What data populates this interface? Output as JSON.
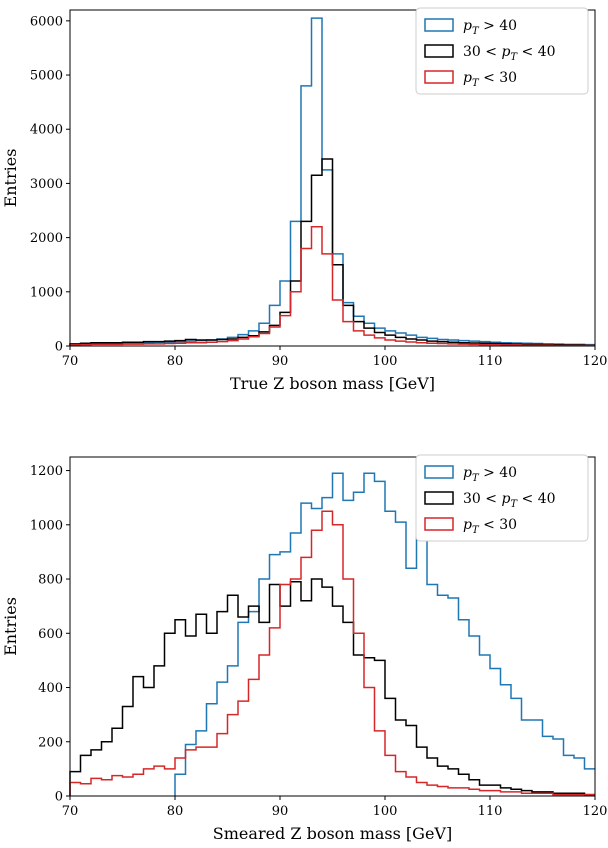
{
  "chart_data": [
    {
      "type": "histogram",
      "title": "",
      "xlabel": "True Z boson mass [GeV]",
      "ylabel": "Entries",
      "xlim": [
        70,
        120
      ],
      "ylim": [
        0,
        6200
      ],
      "xticks": [
        70,
        80,
        90,
        100,
        110,
        120
      ],
      "yticks": [
        0,
        1000,
        2000,
        3000,
        4000,
        5000,
        6000
      ],
      "bin_edges_start": 70,
      "bin_width": 1,
      "legend_position": "top-right",
      "series": [
        {
          "name": "p_T > 40",
          "legend_main": "p",
          "legend_sub": "T",
          "legend_rest": " > 40",
          "color": "#1f77b4",
          "values": [
            30,
            40,
            50,
            50,
            50,
            50,
            60,
            60,
            70,
            70,
            80,
            90,
            100,
            110,
            130,
            160,
            210,
            280,
            420,
            750,
            1200,
            2300,
            4800,
            6050,
            3250,
            1700,
            800,
            550,
            420,
            330,
            280,
            240,
            200,
            160,
            140,
            120,
            110,
            100,
            90,
            80,
            70,
            60,
            55,
            50,
            45,
            40,
            35,
            30,
            30,
            25
          ]
        },
        {
          "name": "30 < p_T < 40",
          "legend_main": "30 < p",
          "legend_sub": "T",
          "legend_rest": " < 40",
          "color": "#000000",
          "values": [
            40,
            50,
            60,
            60,
            60,
            70,
            70,
            80,
            80,
            90,
            100,
            120,
            110,
            110,
            120,
            130,
            160,
            190,
            260,
            380,
            620,
            1200,
            2300,
            3150,
            3450,
            1500,
            750,
            450,
            330,
            250,
            200,
            160,
            130,
            110,
            90,
            80,
            70,
            60,
            55,
            50,
            45,
            40,
            35,
            30,
            30,
            25,
            25,
            20,
            20,
            15
          ]
        },
        {
          "name": "p_T < 30",
          "legend_main": "p",
          "legend_sub": "T",
          "legend_rest": " < 30",
          "color": "#d62728",
          "values": [
            20,
            25,
            30,
            30,
            30,
            35,
            35,
            40,
            40,
            45,
            50,
            60,
            60,
            70,
            80,
            100,
            130,
            170,
            230,
            350,
            560,
            1000,
            1800,
            2200,
            1700,
            850,
            450,
            280,
            200,
            150,
            110,
            90,
            75,
            60,
            50,
            45,
            40,
            35,
            30,
            25,
            25,
            20,
            20,
            15,
            15,
            15,
            10,
            10,
            10,
            10
          ]
        }
      ]
    },
    {
      "type": "histogram",
      "title": "",
      "xlabel": "Smeared Z boson mass [GeV]",
      "ylabel": "Entries",
      "xlim": [
        70,
        120
      ],
      "ylim": [
        0,
        1250
      ],
      "xticks": [
        70,
        80,
        90,
        100,
        110,
        120
      ],
      "yticks": [
        0,
        200,
        400,
        600,
        800,
        1000,
        1200
      ],
      "bin_edges_start": 70,
      "bin_width": 1,
      "legend_position": "top-right",
      "series": [
        {
          "name": "p_T > 40",
          "legend_main": "p",
          "legend_sub": "T",
          "legend_rest": " > 40",
          "color": "#1f77b4",
          "values": [
            null,
            null,
            null,
            null,
            null,
            null,
            null,
            null,
            null,
            null,
            80,
            190,
            240,
            340,
            420,
            480,
            640,
            680,
            800,
            890,
            900,
            970,
            1080,
            1060,
            1100,
            1190,
            1090,
            1120,
            1190,
            1160,
            1050,
            1010,
            840,
            950,
            780,
            740,
            730,
            650,
            590,
            520,
            470,
            410,
            360,
            280,
            280,
            220,
            210,
            150,
            140,
            100
          ]
        },
        {
          "name": "30 < p_T < 40",
          "legend_main": "30 < p",
          "legend_sub": "T",
          "legend_rest": " < 40",
          "color": "#000000",
          "values": [
            90,
            150,
            170,
            200,
            250,
            330,
            440,
            400,
            480,
            600,
            650,
            590,
            670,
            600,
            680,
            740,
            660,
            700,
            640,
            780,
            700,
            790,
            720,
            800,
            770,
            700,
            640,
            520,
            510,
            500,
            360,
            280,
            260,
            180,
            140,
            110,
            100,
            80,
            60,
            40,
            40,
            30,
            25,
            20,
            15,
            15,
            10,
            10,
            10,
            5
          ]
        },
        {
          "name": "p_T < 30",
          "legend_main": "p",
          "legend_sub": "T",
          "legend_rest": " < 30",
          "color": "#d62728",
          "values": [
            50,
            45,
            65,
            60,
            75,
            70,
            80,
            100,
            110,
            100,
            140,
            170,
            180,
            180,
            230,
            300,
            350,
            430,
            520,
            620,
            780,
            800,
            880,
            980,
            1050,
            1000,
            800,
            600,
            400,
            240,
            150,
            90,
            70,
            50,
            40,
            35,
            30,
            30,
            25,
            20,
            20,
            15,
            15,
            10,
            10,
            10,
            5,
            5,
            5,
            5
          ]
        }
      ]
    }
  ]
}
